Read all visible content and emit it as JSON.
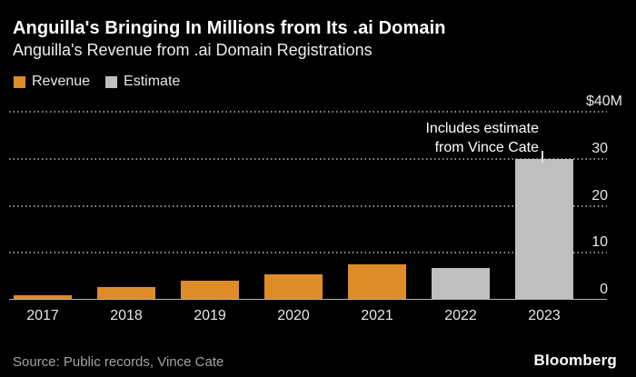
{
  "header": {
    "title": "Anguilla's Bringing In Millions from Its .ai Domain",
    "subtitle": "Anguilla's Revenue from .ai Domain Registrations"
  },
  "legend": {
    "items": [
      {
        "label": "Revenue",
        "color": "#de8c28"
      },
      {
        "label": "Estimate",
        "color": "#bfbfbf"
      }
    ]
  },
  "annotation": {
    "line1": "Includes estimate",
    "line2": "from Vince Cate"
  },
  "footer": {
    "source": "Source: Public records, Vince Cate",
    "brand": "Bloomberg"
  },
  "chart_data": {
    "type": "bar",
    "title": "Anguilla's Revenue from .ai Domain Registrations",
    "categories": [
      "2017",
      "2018",
      "2019",
      "2020",
      "2021",
      "2022",
      "2023"
    ],
    "series": [
      {
        "name": "Revenue",
        "color": "#de8c28",
        "values": [
          0.8,
          2.6,
          3.9,
          5.2,
          7.3,
          null,
          null
        ]
      },
      {
        "name": "Estimate",
        "color": "#bfbfbf",
        "values": [
          null,
          null,
          null,
          null,
          null,
          6.6,
          29.8
        ]
      }
    ],
    "xlabel": "",
    "ylabel": "",
    "ylim": [
      0,
      40
    ],
    "yticks": [
      0,
      10,
      20,
      30,
      40
    ],
    "ytick_labels": [
      "0",
      "10",
      "20",
      "30",
      "$40M"
    ],
    "value_axis_side": "right",
    "grid": "horizontal-dotted",
    "legend_position": "top-left",
    "annotation": "Includes estimate from Vince Cate (points to 2023 bar)"
  }
}
